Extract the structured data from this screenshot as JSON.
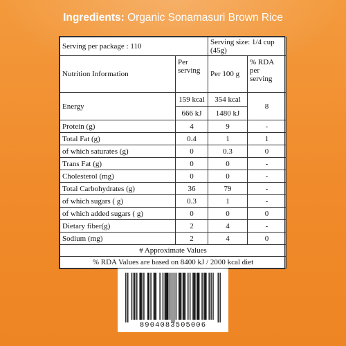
{
  "header": {
    "label": "Ingredients:",
    "value": "Organic Sonamasuri Brown Rice"
  },
  "serving": {
    "per_package": "Serving per package : 110",
    "size": "Serving size: 1/4 cup (45g)"
  },
  "columns": {
    "nutrient": "Nutrition Information",
    "per_serving": "Per serving",
    "per_100g": "Per 100 g",
    "rda": "% RDA per serving"
  },
  "energy": {
    "label": "Energy",
    "kcal_serving": "159 kcal",
    "kcal_100g": "354 kcal",
    "kj_serving": "666 kJ",
    "kj_100g": "1480 kJ",
    "rda": "8"
  },
  "rows": [
    {
      "name": "Protein (g)",
      "serving": "4",
      "per100": "9",
      "rda": "-"
    },
    {
      "name": "Total Fat (g)",
      "serving": "0.4",
      "per100": "1",
      "rda": "1"
    },
    {
      "name": "of which saturates (g)",
      "serving": "0",
      "per100": "0.3",
      "rda": "0"
    },
    {
      "name": "Trans Fat (g)",
      "serving": "0",
      "per100": "0",
      "rda": "-"
    },
    {
      "name": "Cholesterol (mg)",
      "serving": "0",
      "per100": "0",
      "rda": "-"
    },
    {
      "name": "Total Carbohydrates (g)",
      "serving": "36",
      "per100": "79",
      "rda": "-"
    },
    {
      "name": "of which sugars ( g)",
      "serving": "0.3",
      "per100": "1",
      "rda": "-"
    },
    {
      "name": "of which added sugars ( g)",
      "serving": "0",
      "per100": "0",
      "rda": "0"
    },
    {
      "name": "Dietary fiber(g)",
      "serving": "2",
      "per100": "4",
      "rda": "-"
    },
    {
      "name": "Sodium  (mg)",
      "serving": "2",
      "per100": "4",
      "rda": "0"
    }
  ],
  "notes": {
    "approx": "# Approximate Values",
    "rda_basis": "% RDA Values are based on 8400 kJ / 2000 kcal diet"
  },
  "barcode": {
    "digits": "8904083505006"
  },
  "colors": {
    "background": "#f08a2a",
    "title_text": "#ffffff"
  }
}
